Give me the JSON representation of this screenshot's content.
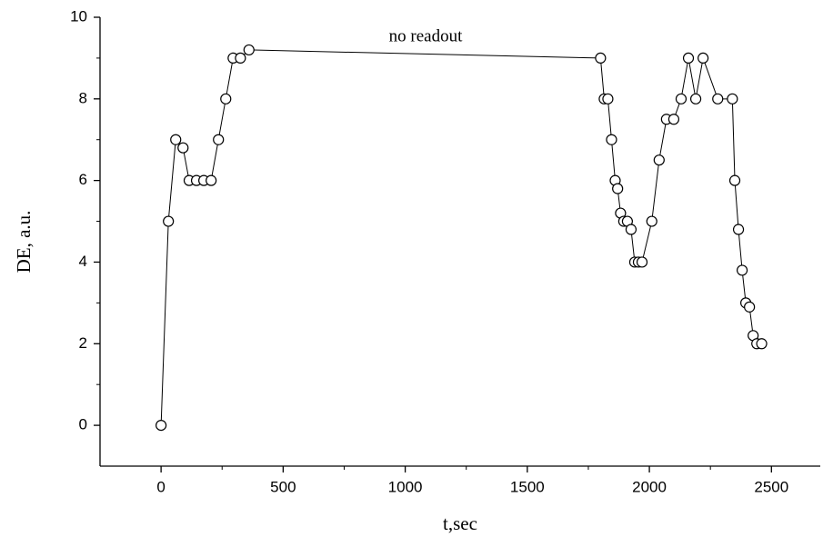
{
  "chart_data": {
    "type": "line",
    "annotation": "no readout",
    "x_label": "t,sec",
    "y_label": "DE, a.u.",
    "xlim": [
      -250,
      2700
    ],
    "xticks": [
      0,
      500,
      1000,
      1500,
      2000,
      2500
    ],
    "ylim": [
      -1,
      10
    ],
    "yticks": [
      0,
      2,
      4,
      6,
      8,
      10
    ],
    "grid": false,
    "series": [
      {
        "color": "#000000",
        "marker": "circle",
        "x": [
          0,
          30,
          60,
          90,
          115,
          145,
          175,
          205,
          235,
          265,
          295,
          325,
          360,
          1800,
          1815,
          1830,
          1845,
          1860,
          1870,
          1882,
          1895,
          1910,
          1925,
          1940,
          1955,
          1970,
          2010,
          2040,
          2070,
          2100,
          2130,
          2160,
          2190,
          2220,
          2280,
          2340,
          2350,
          2365,
          2380,
          2395,
          2410,
          2425,
          2440,
          2460
        ],
        "values": [
          0,
          5,
          7,
          6.8,
          6,
          6,
          6,
          6,
          7,
          8,
          9,
          9,
          9.2,
          9,
          8,
          8,
          7,
          6,
          5.8,
          5.2,
          5,
          5,
          4.8,
          4,
          4,
          4,
          5,
          6.5,
          7.5,
          7.5,
          8,
          9,
          8,
          9,
          8,
          8,
          6,
          4.8,
          3.8,
          3,
          2.9,
          2.2,
          2,
          2
        ]
      }
    ]
  }
}
